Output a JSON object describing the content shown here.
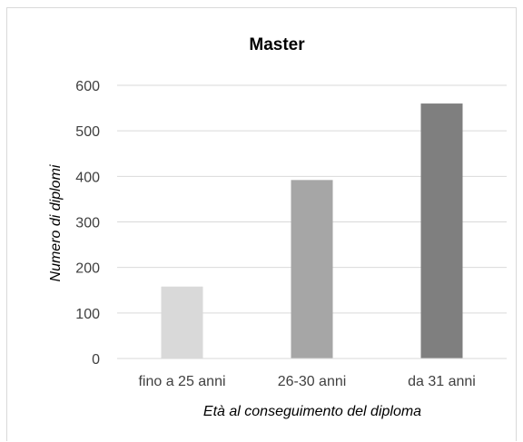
{
  "chart_data": {
    "type": "bar",
    "title": "Master",
    "xlabel": "Età al conseguimento del diploma",
    "ylabel": "Numero di diplomi",
    "categories": [
      "fino a 25 anni",
      "26-30 anni",
      "da 31 anni"
    ],
    "values": [
      158,
      392,
      560
    ],
    "colors": [
      "#d9d9d9",
      "#a6a6a6",
      "#7f7f7f"
    ],
    "ylim": [
      0,
      600
    ],
    "yticks": [
      "0",
      "100",
      "200",
      "300",
      "400",
      "500",
      "600"
    ],
    "grid": true,
    "legend": "none"
  }
}
